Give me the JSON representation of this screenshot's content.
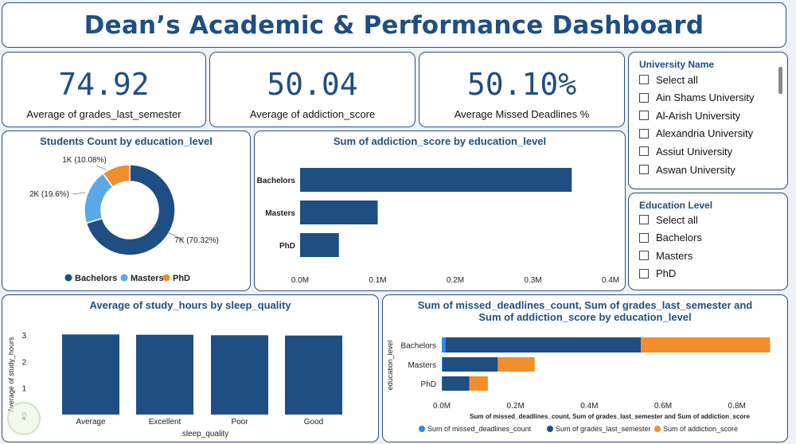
{
  "title": "Dean’s Academic & Performance Dashboard",
  "kpis": [
    {
      "value": "74.92",
      "label": "Average of grades_last_semester"
    },
    {
      "value": "50.04",
      "label": "Average of addiction_score"
    },
    {
      "value": "50.10%",
      "label": "Average Missed Deadlines %"
    }
  ],
  "slicers": {
    "university": {
      "title": "University Name",
      "items": [
        "Select all",
        "Ain Shams University",
        "Al-Arish University",
        "Alexandria University",
        "Assiut University",
        "Aswan University"
      ]
    },
    "education": {
      "title": "Education Level",
      "items": [
        "Select all",
        "Bachelors",
        "Masters",
        "PhD"
      ]
    }
  },
  "colors": {
    "dark_blue": "#1f4e82",
    "light_blue": "#5aa9e6",
    "orange": "#f28e2b",
    "bright_blue": "#2b8cee"
  },
  "chart_data": [
    {
      "id": "donut",
      "type": "pie",
      "title": "Students Count by education_level",
      "categories": [
        "Bachelors",
        "Masters",
        "PhD"
      ],
      "values": [
        70.32,
        19.6,
        10.08
      ],
      "labels": [
        "7K (70.32%)",
        "2K (19.6%)",
        "1K (10.08%)"
      ],
      "legend": [
        "Bachelors",
        "Masters",
        "PhD"
      ]
    },
    {
      "id": "addiction",
      "type": "bar",
      "orientation": "horizontal",
      "title": "Sum of addiction_score by education_level",
      "categories": [
        "Bachelors",
        "Masters",
        "PhD"
      ],
      "values": [
        0.35,
        0.1,
        0.05
      ],
      "xlim": [
        0,
        0.4
      ],
      "xticks": [
        "0.0M",
        "0.1M",
        "0.2M",
        "0.3M",
        "0.4M"
      ]
    },
    {
      "id": "study",
      "type": "bar",
      "title": "Average of study_hours by sleep_quality",
      "categories": [
        "Average",
        "Excellent",
        "Poor",
        "Good"
      ],
      "values": [
        3.02,
        3.01,
        2.99,
        2.98
      ],
      "ylim": [
        0,
        3
      ],
      "yticks": [
        "0",
        "1",
        "2",
        "3"
      ],
      "xlabel": "sleep_quality",
      "ylabel": "Average of study_hours"
    },
    {
      "id": "stacked",
      "type": "bar",
      "orientation": "horizontal",
      "stacked": true,
      "title": "Sum of missed_deadlines_count, Sum of grades_last_semester and Sum of addiction_score by education_level",
      "categories": [
        "Bachelors",
        "Masters",
        "PhD"
      ],
      "series": [
        {
          "name": "Sum of missed_deadlines_count",
          "values": [
            0.01,
            0.002,
            0.001
          ]
        },
        {
          "name": "Sum of grades_last_semester",
          "values": [
            0.53,
            0.15,
            0.074
          ]
        },
        {
          "name": "Sum of addiction_score",
          "values": [
            0.35,
            0.1,
            0.05
          ]
        }
      ],
      "xlim": [
        0,
        0.9
      ],
      "xticks": [
        "0.0M",
        "0.2M",
        "0.4M",
        "0.6M",
        "0.8M"
      ],
      "xlabel": "Sum of missed_deadlines_count, Sum of grades_last_semester and Sum of addiction_score",
      "ylabel": "education_level"
    }
  ]
}
